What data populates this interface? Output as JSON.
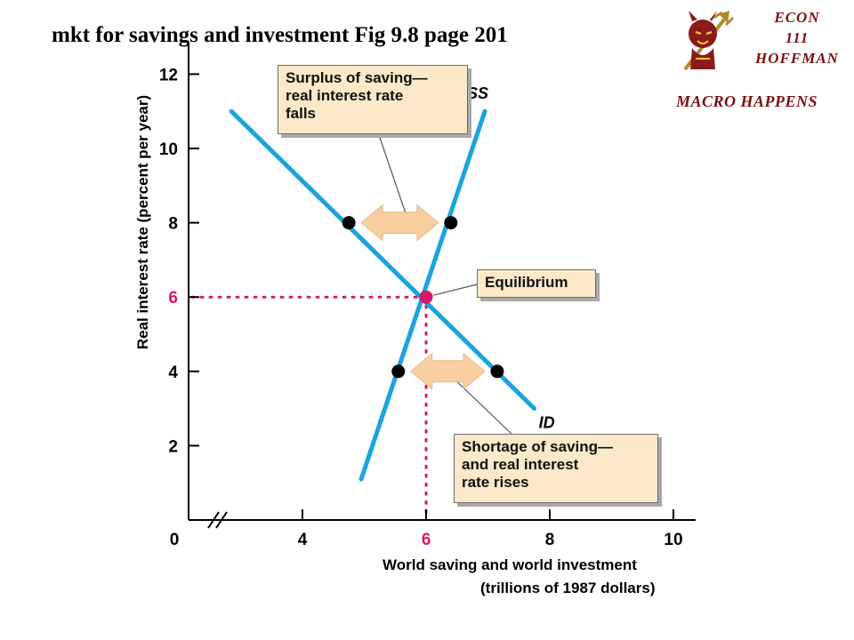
{
  "header": {
    "title": "mkt for savings and investment  Fig 9.8  page 201"
  },
  "branding": {
    "logo_icon": "sun-devil-mascot-icon",
    "course_line1": "ECON",
    "course_line2": "111",
    "instructor": "HOFFMAN",
    "tagline": "MACRO HAPPENS",
    "color": "#7a1111"
  },
  "chart_data": {
    "type": "line",
    "xlabel_line1": "World saving and world investment",
    "xlabel_line2": "(trillions of 1987 dollars)",
    "ylabel": "Real interest rate (percent per year)",
    "xlim": [
      2,
      10
    ],
    "ylim": [
      0,
      12.5
    ],
    "x_ticks": [
      4,
      6,
      8,
      10
    ],
    "x_origin_label": "0",
    "y_ticks": [
      2,
      4,
      6,
      8,
      10,
      12
    ],
    "axis_break_on_x": true,
    "grid": false,
    "series": [
      {
        "name": "SS",
        "color": "#1aa3df",
        "points": [
          [
            4.95,
            1.1
          ],
          [
            6.95,
            11.0
          ]
        ]
      },
      {
        "name": "ID",
        "color": "#1aa3df",
        "points": [
          [
            2.85,
            11.0
          ],
          [
            7.75,
            3.0
          ]
        ]
      }
    ],
    "equilibrium": {
      "x": 6,
      "y": 6,
      "color": "#d6186a"
    },
    "points": [
      {
        "x": 4.75,
        "y": 8
      },
      {
        "x": 6.4,
        "y": 8
      },
      {
        "x": 5.55,
        "y": 4
      },
      {
        "x": 7.15,
        "y": 4
      }
    ],
    "highlight_tick_color": "#d6186a",
    "arrow_color": "#f7cfa0",
    "annotations": [
      {
        "id": "surplus",
        "lines": [
          "Surplus of saving—",
          "real interest rate",
          "falls"
        ]
      },
      {
        "id": "equilibrium",
        "lines": [
          "Equilibrium"
        ]
      },
      {
        "id": "shortage",
        "lines": [
          "Shortage of saving—",
          "and real interest",
          "rate rises"
        ]
      }
    ]
  }
}
